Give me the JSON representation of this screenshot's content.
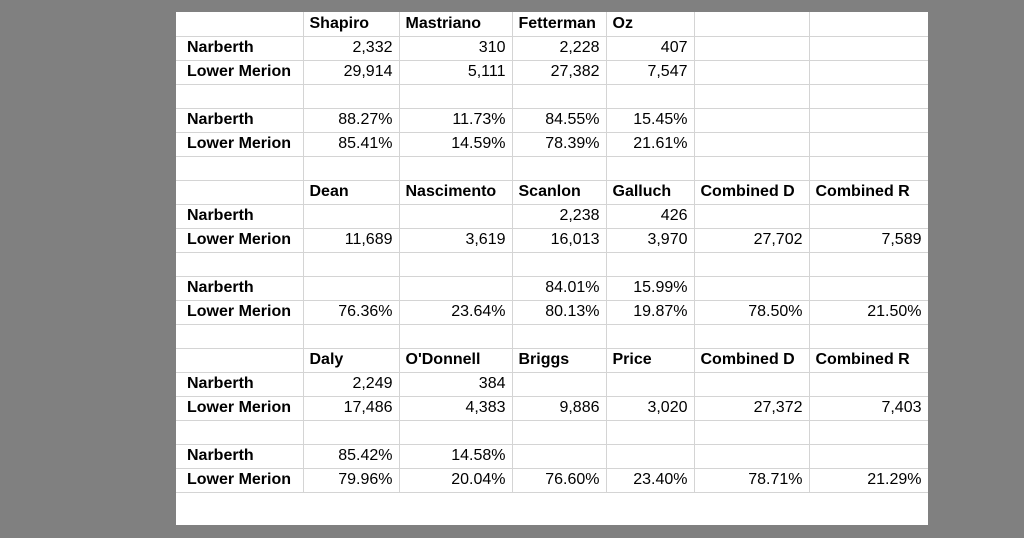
{
  "sections": [
    {
      "header": [
        "Shapiro",
        "Mastriano",
        "Fetterman",
        "Oz",
        "",
        ""
      ],
      "counts": [
        {
          "label": "Narberth",
          "values": [
            "2,332",
            "310",
            "2,228",
            "407",
            "",
            ""
          ]
        },
        {
          "label": "Lower Merion",
          "values": [
            "29,914",
            "5,111",
            "27,382",
            "7,547",
            "",
            ""
          ]
        }
      ],
      "percents": [
        {
          "label": "Narberth",
          "values": [
            "88.27%",
            "11.73%",
            "84.55%",
            "15.45%",
            "",
            ""
          ]
        },
        {
          "label": "Lower Merion",
          "values": [
            "85.41%",
            "14.59%",
            "78.39%",
            "21.61%",
            "",
            ""
          ]
        }
      ]
    },
    {
      "header": [
        "Dean",
        "Nascimento",
        "Scanlon",
        "Galluch",
        "Combined D",
        "Combined R"
      ],
      "counts": [
        {
          "label": "Narberth",
          "values": [
            "",
            "",
            "2,238",
            "426",
            "",
            ""
          ]
        },
        {
          "label": "Lower Merion",
          "values": [
            "11,689",
            "3,619",
            "16,013",
            "3,970",
            "27,702",
            "7,589"
          ]
        }
      ],
      "percents": [
        {
          "label": "Narberth",
          "values": [
            "",
            "",
            "84.01%",
            "15.99%",
            "",
            ""
          ]
        },
        {
          "label": "Lower Merion",
          "values": [
            "76.36%",
            "23.64%",
            "80.13%",
            "19.87%",
            "78.50%",
            "21.50%"
          ]
        }
      ]
    },
    {
      "header": [
        "Daly",
        "O'Donnell",
        "Briggs",
        "Price",
        "Combined D",
        "Combined R"
      ],
      "counts": [
        {
          "label": "Narberth",
          "values": [
            "2,249",
            "384",
            "",
            "",
            "",
            ""
          ]
        },
        {
          "label": "Lower Merion",
          "values": [
            "17,486",
            "4,383",
            "9,886",
            "3,020",
            "27,372",
            "7,403"
          ]
        }
      ],
      "percents": [
        {
          "label": "Narberth",
          "values": [
            "85.42%",
            "14.58%",
            "",
            "",
            "",
            ""
          ]
        },
        {
          "label": "Lower Merion",
          "values": [
            "79.96%",
            "20.04%",
            "76.60%",
            "23.40%",
            "78.71%",
            "21.29%"
          ]
        }
      ]
    }
  ]
}
